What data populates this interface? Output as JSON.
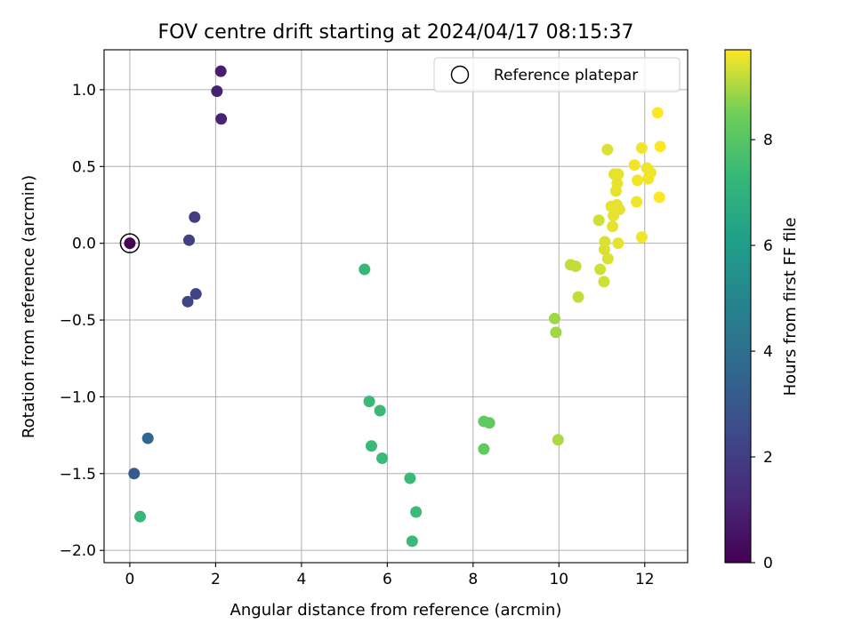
{
  "chart_data": {
    "type": "scatter",
    "title": "FOV centre drift starting at 2024/04/17 08:15:37",
    "xlabel": "Angular distance from reference (arcmin)",
    "ylabel": "Rotation from reference (arcmin)",
    "xlim": [
      -0.6,
      13.0
    ],
    "ylim": [
      -2.08,
      1.26
    ],
    "x_ticks": [
      0,
      2,
      4,
      6,
      8,
      10,
      12
    ],
    "y_ticks": [
      -2.0,
      -1.5,
      -1.0,
      -0.5,
      0.0,
      0.5,
      1.0
    ],
    "x_tick_labels": [
      "0",
      "2",
      "4",
      "6",
      "8",
      "10",
      "12"
    ],
    "y_tick_labels": [
      "−2.0",
      "−1.5",
      "−1.0",
      "−0.5",
      "0.0",
      "0.5",
      "1.0"
    ],
    "grid": true,
    "legend": {
      "position": "top-right",
      "entries": [
        {
          "label": "Reference platepar",
          "marker": "open-circle"
        }
      ]
    },
    "colorbar": {
      "label": "Hours from first FF file",
      "colormap": "viridis",
      "range": [
        0,
        9.7
      ],
      "ticks": [
        0,
        2,
        4,
        6,
        8
      ],
      "tick_labels": [
        "0",
        "2",
        "4",
        "6",
        "8"
      ]
    },
    "reference_point": {
      "x": 0.0,
      "y": 0.0,
      "hours": 0.0
    },
    "series": [
      {
        "points": [
          {
            "x": 0.0,
            "y": 0.0,
            "hours": 0.05
          },
          {
            "x": 2.12,
            "y": 1.12,
            "hours": 0.9
          },
          {
            "x": 2.03,
            "y": 0.99,
            "hours": 1.0
          },
          {
            "x": 2.13,
            "y": 0.81,
            "hours": 1.1
          },
          {
            "x": 1.51,
            "y": 0.17,
            "hours": 2.0
          },
          {
            "x": 1.38,
            "y": 0.02,
            "hours": 2.1
          },
          {
            "x": 1.54,
            "y": -0.33,
            "hours": 2.2
          },
          {
            "x": 1.35,
            "y": -0.38,
            "hours": 2.3
          },
          {
            "x": 0.1,
            "y": -1.5,
            "hours": 3.1
          },
          {
            "x": 0.42,
            "y": -1.27,
            "hours": 3.6
          },
          {
            "x": 0.24,
            "y": -1.78,
            "hours": 7.3
          },
          {
            "x": 5.47,
            "y": -0.17,
            "hours": 7.3
          },
          {
            "x": 5.58,
            "y": -1.03,
            "hours": 7.4
          },
          {
            "x": 5.83,
            "y": -1.09,
            "hours": 7.4
          },
          {
            "x": 5.63,
            "y": -1.32,
            "hours": 7.4
          },
          {
            "x": 5.88,
            "y": -1.4,
            "hours": 7.4
          },
          {
            "x": 6.53,
            "y": -1.53,
            "hours": 7.4
          },
          {
            "x": 6.67,
            "y": -1.75,
            "hours": 7.4
          },
          {
            "x": 6.58,
            "y": -1.94,
            "hours": 7.4
          },
          {
            "x": 8.25,
            "y": -1.16,
            "hours": 8.2
          },
          {
            "x": 8.38,
            "y": -1.17,
            "hours": 8.2
          },
          {
            "x": 8.25,
            "y": -1.34,
            "hours": 8.2
          },
          {
            "x": 9.9,
            "y": -0.49,
            "hours": 8.9
          },
          {
            "x": 9.93,
            "y": -0.58,
            "hours": 8.9
          },
          {
            "x": 9.98,
            "y": -1.28,
            "hours": 9.0
          },
          {
            "x": 10.27,
            "y": -0.14,
            "hours": 9.2
          },
          {
            "x": 10.39,
            "y": -0.15,
            "hours": 9.2
          },
          {
            "x": 10.45,
            "y": -0.35,
            "hours": 9.2
          },
          {
            "x": 10.93,
            "y": 0.15,
            "hours": 9.3
          },
          {
            "x": 10.96,
            "y": -0.17,
            "hours": 9.3
          },
          {
            "x": 11.05,
            "y": -0.25,
            "hours": 9.3
          },
          {
            "x": 11.07,
            "y": 0.01,
            "hours": 9.4
          },
          {
            "x": 11.06,
            "y": -0.04,
            "hours": 9.4
          },
          {
            "x": 11.14,
            "y": -0.1,
            "hours": 9.4
          },
          {
            "x": 11.13,
            "y": 0.61,
            "hours": 9.4
          },
          {
            "x": 11.22,
            "y": 0.24,
            "hours": 9.5
          },
          {
            "x": 11.25,
            "y": 0.11,
            "hours": 9.5
          },
          {
            "x": 11.27,
            "y": 0.18,
            "hours": 9.5
          },
          {
            "x": 11.29,
            "y": 0.45,
            "hours": 9.5
          },
          {
            "x": 11.33,
            "y": 0.34,
            "hours": 9.5
          },
          {
            "x": 11.35,
            "y": 0.25,
            "hours": 9.5
          },
          {
            "x": 11.36,
            "y": 0.39,
            "hours": 9.5
          },
          {
            "x": 11.38,
            "y": 0.45,
            "hours": 9.5
          },
          {
            "x": 11.38,
            "y": -0.0,
            "hours": 9.5
          },
          {
            "x": 11.41,
            "y": 0.22,
            "hours": 9.5
          },
          {
            "x": 11.76,
            "y": 0.51,
            "hours": 9.6
          },
          {
            "x": 11.81,
            "y": 0.27,
            "hours": 9.6
          },
          {
            "x": 11.83,
            "y": 0.41,
            "hours": 9.6
          },
          {
            "x": 11.93,
            "y": 0.62,
            "hours": 9.6
          },
          {
            "x": 11.93,
            "y": 0.04,
            "hours": 9.6
          },
          {
            "x": 12.05,
            "y": 0.49,
            "hours": 9.6
          },
          {
            "x": 12.08,
            "y": 0.42,
            "hours": 9.6
          },
          {
            "x": 12.14,
            "y": 0.46,
            "hours": 9.6
          },
          {
            "x": 12.3,
            "y": 0.85,
            "hours": 9.7
          },
          {
            "x": 12.34,
            "y": 0.3,
            "hours": 9.7
          },
          {
            "x": 12.36,
            "y": 0.63,
            "hours": 9.7
          }
        ]
      }
    ]
  }
}
